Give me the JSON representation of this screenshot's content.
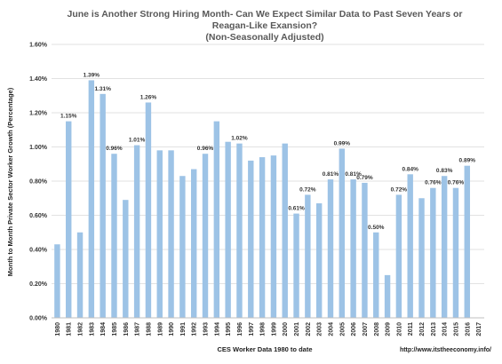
{
  "chart_data": {
    "type": "bar",
    "title": [
      "June is Another Strong Hiring Month- Can We Expect Similar Data to Past Seven Years or",
      "Reagan-Like Exansion?",
      "(Non-Seasonally Adjusted)"
    ],
    "xlabel": "CES Worker Data 1980 to date",
    "ylabel": "Month to Month Private Sector Worker Growth (Percentage)",
    "source": "http://www.itstheeconomy.info/",
    "ylim": [
      0,
      1.6
    ],
    "yticks": [
      "0.00%",
      "0.20%",
      "0.40%",
      "0.60%",
      "0.80%",
      "1.00%",
      "1.20%",
      "1.40%",
      "1.60%"
    ],
    "grid": true,
    "bar_color": "#9dc3e6",
    "categories": [
      "1980",
      "1981",
      "1982",
      "1983",
      "1984",
      "1985",
      "1986",
      "1987",
      "1988",
      "1989",
      "1990",
      "1991",
      "1992",
      "1993",
      "1994",
      "1995",
      "1996",
      "1997",
      "1998",
      "1999",
      "2000",
      "2001",
      "2002",
      "2003",
      "2004",
      "2005",
      "2006",
      "2007",
      "2008",
      "2009",
      "2010",
      "2011",
      "2012",
      "2013",
      "2014",
      "2015",
      "2016",
      "2017"
    ],
    "values": [
      0.43,
      1.15,
      0.5,
      1.39,
      1.31,
      0.96,
      0.69,
      1.01,
      1.26,
      0.98,
      0.98,
      0.83,
      0.87,
      0.96,
      1.15,
      1.03,
      1.02,
      0.92,
      0.94,
      0.95,
      1.02,
      0.61,
      0.72,
      0.67,
      0.81,
      0.99,
      0.81,
      0.79,
      0.5,
      0.25,
      0.72,
      0.84,
      0.7,
      0.76,
      0.83,
      0.76,
      0.89,
      null
    ],
    "data_labels": [
      "",
      "1.15%",
      "",
      "1.39%",
      "1.31%",
      "0.96%",
      "",
      "1.01%",
      "1.26%",
      "",
      "",
      "",
      "",
      "0.96%",
      "",
      "",
      "1.02%",
      "",
      "",
      "",
      "",
      "0.61%",
      "0.72%",
      "",
      "0.81%",
      "0.99%",
      "0.81%",
      "0.79%",
      "0.50%",
      "",
      "0.72%",
      "0.84%",
      "",
      "0.76%",
      "0.83%",
      "0.76%",
      "0.89%",
      ""
    ]
  }
}
